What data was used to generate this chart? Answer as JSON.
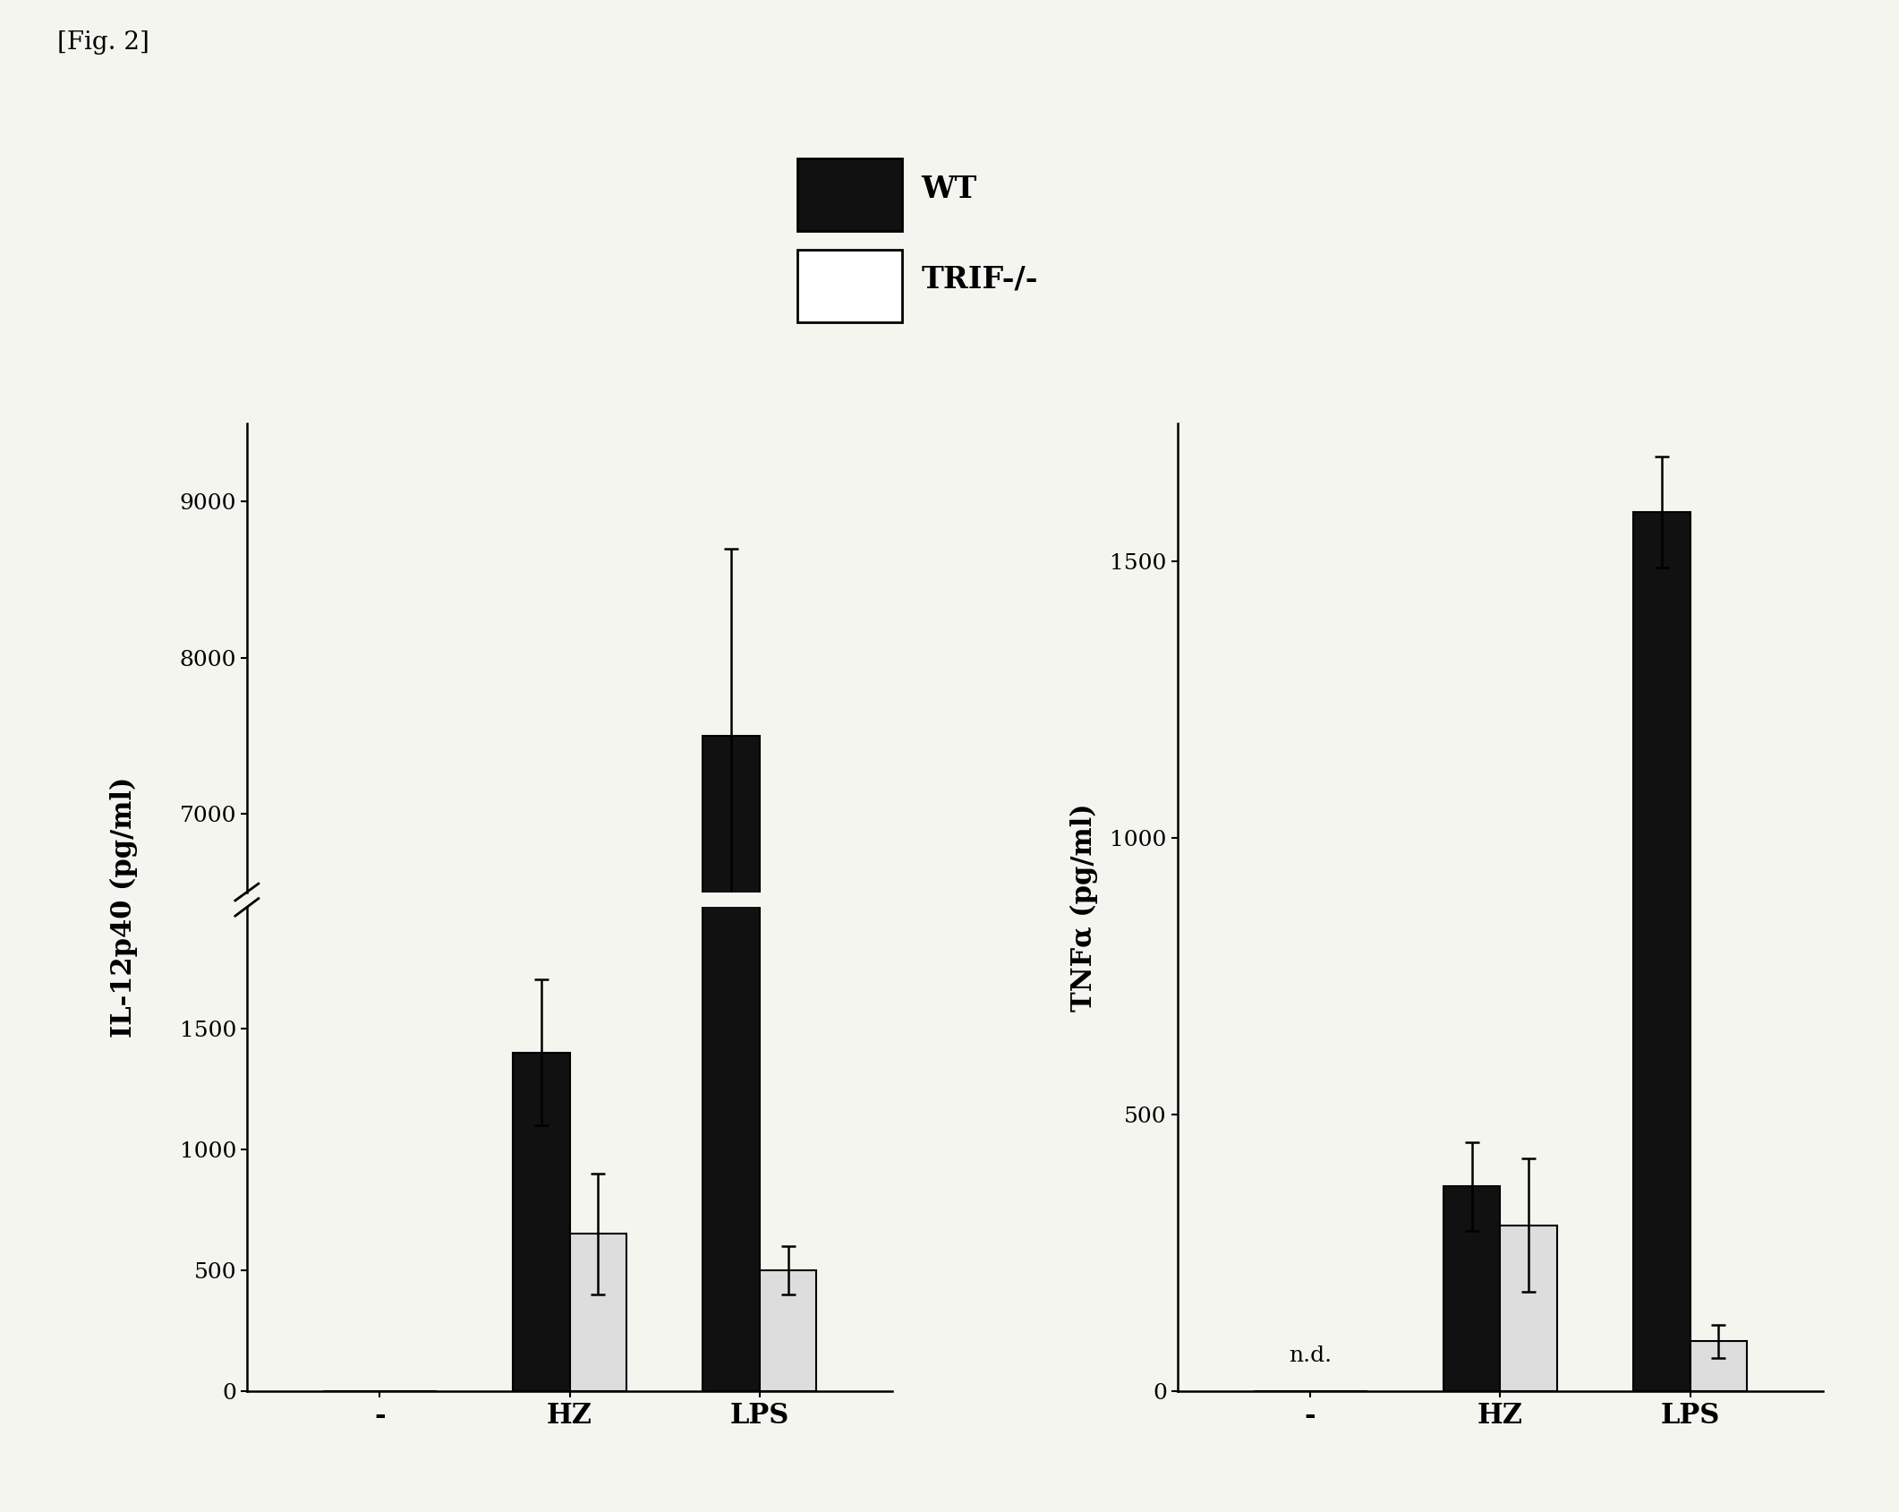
{
  "fig_label": "[Fig. 2]",
  "legend_entries": [
    "WT",
    "TRIF-/-"
  ],
  "legend_colors": [
    "#000000",
    "#ffffff"
  ],
  "left_chart": {
    "ylabel": "IL-12p40 (pg/ml)",
    "categories": [
      "-",
      "HZ",
      "LPS"
    ],
    "wt_values": [
      0,
      1400,
      7500
    ],
    "trif_values": [
      0,
      650,
      500
    ],
    "wt_errors": [
      0,
      300,
      1200
    ],
    "trif_errors": [
      0,
      250,
      100
    ],
    "yticks_lower": [
      0,
      500,
      1000,
      1500
    ],
    "yticks_upper": [
      7000,
      8000,
      9000
    ],
    "ylim_lower": [
      0,
      2000
    ],
    "ylim_upper": [
      6500,
      9500
    ]
  },
  "right_chart": {
    "ylabel": "TNFα (pg/ml)",
    "categories": [
      "-",
      "HZ",
      "LPS"
    ],
    "wt_values": [
      0,
      370,
      1590
    ],
    "trif_values": [
      0,
      300,
      90
    ],
    "wt_errors": [
      0,
      80,
      100
    ],
    "trif_errors": [
      0,
      120,
      30
    ],
    "yticks": [
      0,
      500,
      1000,
      1500
    ],
    "ylim": [
      0,
      1750
    ],
    "nd_label": "n.d."
  },
  "bar_width": 0.3,
  "bg_color": "#f5f5f0",
  "bar_color_wt": "#111111",
  "bar_color_trif": "#dddddd",
  "bar_edge_color": "#000000",
  "font_size": 20,
  "tick_font_size": 18,
  "label_font_size": 22
}
